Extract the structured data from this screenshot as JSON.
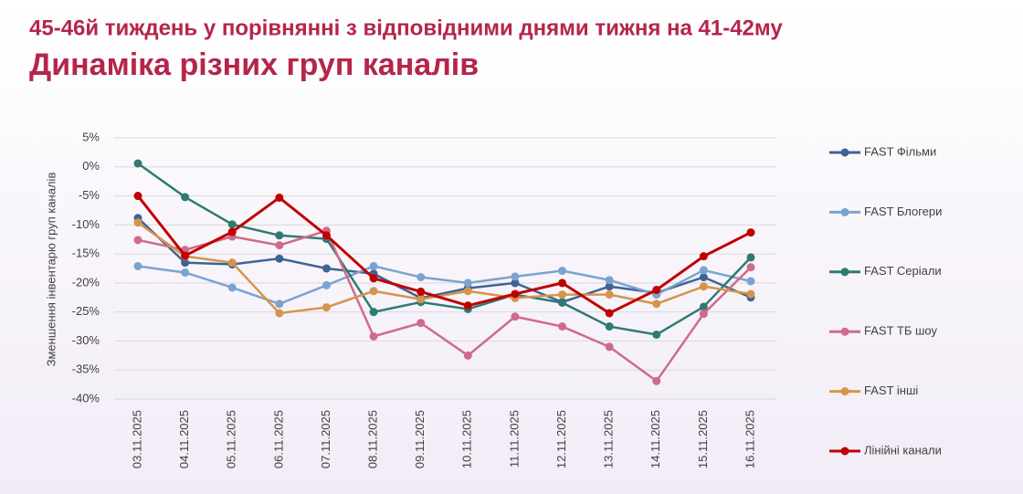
{
  "chart_data": {
    "type": "line",
    "subtitle": "45-46й тиждень у порівнянні з відповідними днями тижня на 41-42му",
    "title": "Динаміка різних груп каналів",
    "y_label": "Зменшення інвентарю груп каналів",
    "categories": [
      "03.11.2025",
      "04.11.2025",
      "05.11.2025",
      "06.11.2025",
      "07.11.2025",
      "08.11.2025",
      "09.11.2025",
      "10.11.2025",
      "11.11.2025",
      "12.11.2025",
      "13.11.2025",
      "14.11.2025",
      "15.11.2025",
      "16.11.2025"
    ],
    "series": [
      {
        "name": "FAST Фільми",
        "color": "#3f6494",
        "values": [
          -8.8,
          -16.5,
          -16.8,
          -15.8,
          -17.5,
          -18.4,
          -22.6,
          -20.9,
          -20,
          -23.3,
          -20.6,
          -21.7,
          -19,
          -22.5
        ]
      },
      {
        "name": "FAST Блогери",
        "color": "#7ba3cf",
        "values": [
          -17.1,
          -18.2,
          -20.8,
          -23.6,
          -20.4,
          -17.1,
          -19,
          -20,
          -18.9,
          -17.9,
          -19.5,
          -22,
          -17.8,
          -19.7
        ]
      },
      {
        "name": "FAST Серіали",
        "color": "#2e7b73",
        "values": [
          0.6,
          -5.2,
          -9.9,
          -11.8,
          -12.4,
          -25,
          -23.3,
          -24.5,
          -22,
          -23.4,
          -27.5,
          -28.9,
          -24.1,
          -15.6
        ]
      },
      {
        "name": "FAST ТБ шоу",
        "color": "#d06a8a",
        "values": [
          -12.6,
          -14.3,
          -12,
          -13.5,
          -11,
          -29.2,
          -26.9,
          -32.5,
          -25.8,
          -27.5,
          -31,
          -36.9,
          -25.3,
          -17.3
        ]
      },
      {
        "name": "FAST інші",
        "color": "#d4954a",
        "values": [
          -9.6,
          -15.4,
          -16.5,
          -25.2,
          -24.2,
          -21.4,
          -22.8,
          -21.4,
          -22.6,
          -22,
          -22,
          -23.6,
          -20.6,
          -21.9
        ]
      },
      {
        "name": "Лінійні канали",
        "color": "#c00000",
        "values": [
          -5,
          -15.3,
          -11.2,
          -5.3,
          -11.8,
          -19.2,
          -21.5,
          -23.9,
          -21.9,
          -20,
          -25.2,
          -21.2,
          -15.4,
          -11.3
        ]
      }
    ],
    "ylim": [
      -40,
      5
    ],
    "yticks": [
      {
        "value": 5,
        "label": "5%"
      },
      {
        "value": 0,
        "label": "0%"
      },
      {
        "value": -5,
        "label": "-5%"
      },
      {
        "value": -10,
        "label": "-10%"
      },
      {
        "value": -15,
        "label": "-15%"
      },
      {
        "value": -20,
        "label": "-20%"
      },
      {
        "value": -25,
        "label": "-25%"
      },
      {
        "value": -30,
        "label": "-30%"
      },
      {
        "value": -35,
        "label": "-35%"
      },
      {
        "value": -40,
        "label": "-40%"
      }
    ],
    "grid": true,
    "legend": "right"
  }
}
